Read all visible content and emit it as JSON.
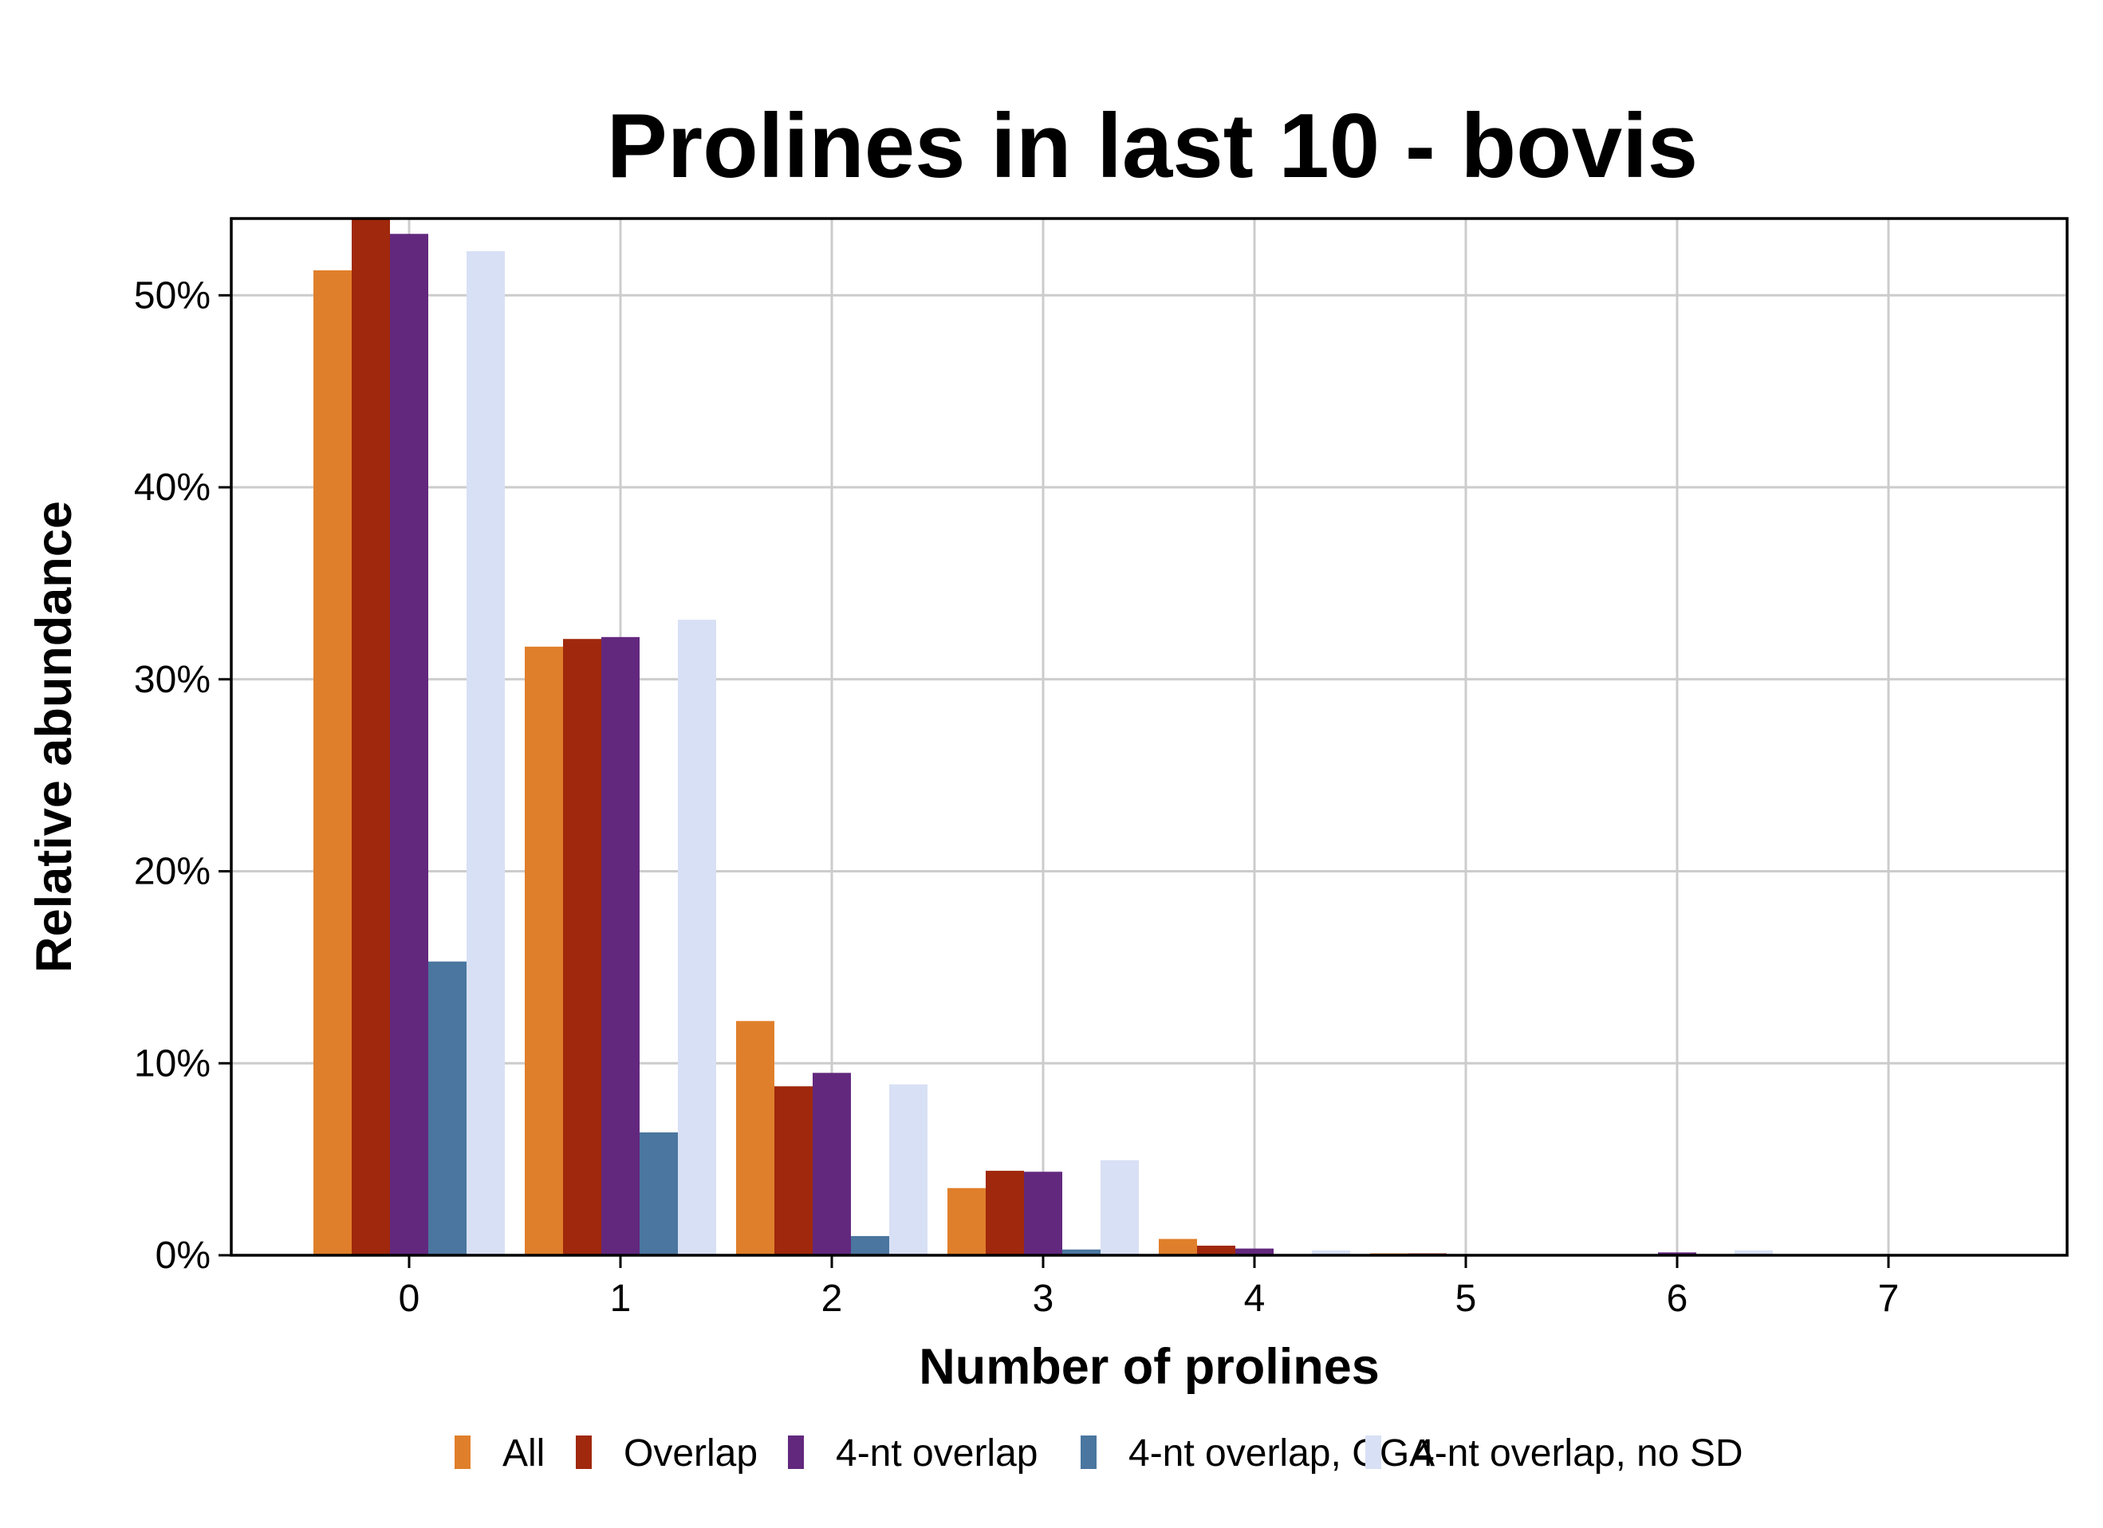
{
  "chart_data": {
    "type": "bar",
    "title": "Prolines in last 10 - bovis",
    "xlabel": "Number of prolines",
    "ylabel": "Relative abundance",
    "categories": [
      "0",
      "1",
      "2",
      "3",
      "4",
      "5",
      "6",
      "7"
    ],
    "ylim": [
      0,
      54
    ],
    "yticks": [
      0,
      10,
      20,
      30,
      40,
      50
    ],
    "ytick_labels": [
      "0%",
      "10%",
      "20%",
      "30%",
      "40%",
      "50%"
    ],
    "grid": true,
    "legend_position": "bottom",
    "series": [
      {
        "name": "All",
        "color": "#E07F2B",
        "values": [
          51.3,
          31.7,
          12.2,
          3.5,
          0.85,
          0.1,
          0.05,
          0.0
        ]
      },
      {
        "name": "Overlap",
        "color": "#A0280C",
        "values": [
          54.0,
          32.1,
          8.8,
          4.4,
          0.5,
          0.1,
          0.05,
          0.0
        ]
      },
      {
        "name": "4-nt overlap",
        "color": "#62287E",
        "values": [
          53.2,
          32.2,
          9.5,
          4.35,
          0.35,
          0.05,
          0.15,
          0.0
        ]
      },
      {
        "name": "4-nt overlap, CGA",
        "color": "#4A769F",
        "values": [
          15.3,
          6.4,
          1.0,
          0.3,
          0.0,
          0.0,
          0.0,
          0.0
        ]
      },
      {
        "name": "4-nt overlap, no SD",
        "color": "#D8E0F5",
        "values": [
          52.3,
          33.1,
          8.9,
          4.95,
          0.25,
          0.05,
          0.25,
          0.0
        ]
      }
    ]
  }
}
